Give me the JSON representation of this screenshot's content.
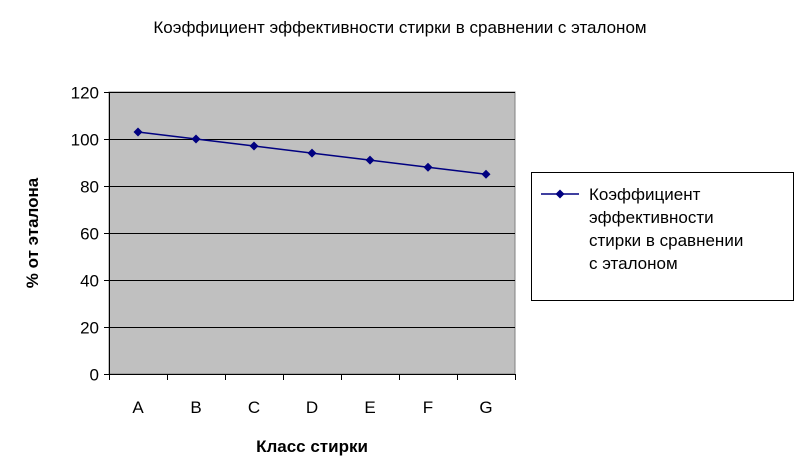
{
  "chart_data": {
    "type": "line",
    "title": "Коэффициент эффективности стирки в сравнении с эталоном",
    "xlabel": "Класс стирки",
    "ylabel": "% от эталона",
    "categories": [
      "A",
      "B",
      "C",
      "D",
      "E",
      "F",
      "G"
    ],
    "ylim": [
      0,
      120
    ],
    "yticks": [
      0,
      20,
      40,
      60,
      80,
      100,
      120
    ],
    "grid": true,
    "legend_position": "right",
    "series": [
      {
        "name": "Коэффициент эффективности стирки в сравнении с эталоном",
        "legend_lines": [
          "Коэффициент",
          "эффективности",
          "стирки в сравнении",
          "с эталоном"
        ],
        "values": [
          103,
          100,
          97,
          94,
          91,
          88,
          85
        ],
        "color": "#000080"
      }
    ],
    "colors": {
      "plot_background": "#c0c0c0",
      "gridline": "#000000",
      "axis": "#000000"
    }
  }
}
